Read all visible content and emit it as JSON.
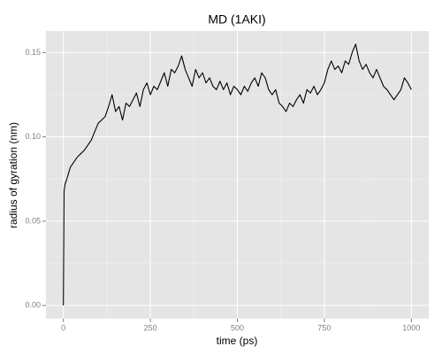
{
  "chart_data": {
    "type": "line",
    "title": "MD (1AKI)",
    "x_label": "time (ps)",
    "y_label": "radius of gyration (nm)",
    "x": [
      0,
      2,
      5,
      10,
      20,
      30,
      40,
      50,
      60,
      70,
      80,
      90,
      100,
      110,
      120,
      130,
      140,
      150,
      160,
      170,
      180,
      190,
      200,
      210,
      220,
      230,
      240,
      250,
      260,
      270,
      280,
      290,
      300,
      310,
      320,
      330,
      340,
      350,
      360,
      370,
      380,
      390,
      400,
      410,
      420,
      430,
      440,
      450,
      460,
      470,
      480,
      490,
      500,
      510,
      520,
      530,
      540,
      550,
      560,
      570,
      580,
      590,
      600,
      610,
      620,
      630,
      640,
      650,
      660,
      670,
      680,
      690,
      700,
      710,
      720,
      730,
      740,
      750,
      760,
      770,
      780,
      790,
      800,
      810,
      820,
      830,
      840,
      850,
      860,
      870,
      880,
      890,
      900,
      910,
      920,
      930,
      940,
      950,
      960,
      970,
      980,
      990,
      1000
    ],
    "values": [
      0.0,
      0.068,
      0.072,
      0.075,
      0.082,
      0.085,
      0.088,
      0.09,
      0.092,
      0.095,
      0.098,
      0.103,
      0.108,
      0.11,
      0.112,
      0.118,
      0.125,
      0.115,
      0.118,
      0.11,
      0.12,
      0.118,
      0.122,
      0.126,
      0.118,
      0.128,
      0.132,
      0.125,
      0.13,
      0.128,
      0.133,
      0.138,
      0.13,
      0.14,
      0.138,
      0.142,
      0.148,
      0.14,
      0.135,
      0.13,
      0.14,
      0.135,
      0.138,
      0.132,
      0.135,
      0.13,
      0.128,
      0.133,
      0.128,
      0.132,
      0.125,
      0.13,
      0.128,
      0.125,
      0.13,
      0.127,
      0.132,
      0.135,
      0.13,
      0.138,
      0.135,
      0.128,
      0.125,
      0.128,
      0.12,
      0.118,
      0.115,
      0.12,
      0.118,
      0.122,
      0.125,
      0.12,
      0.128,
      0.126,
      0.13,
      0.125,
      0.128,
      0.132,
      0.14,
      0.145,
      0.14,
      0.142,
      0.138,
      0.145,
      0.143,
      0.15,
      0.155,
      0.145,
      0.14,
      0.143,
      0.138,
      0.135,
      0.14,
      0.135,
      0.13,
      0.128,
      0.125,
      0.122,
      0.125,
      0.128,
      0.135,
      0.132,
      0.128
    ],
    "color": "#000000",
    "xlim": [
      -50,
      1050
    ],
    "ylim": [
      -0.0078,
      0.1628
    ],
    "xticks": [
      0,
      250,
      500,
      750,
      1000
    ],
    "yticks": [
      {
        "value": 0,
        "label": "0.00"
      },
      0.05,
      {
        "value": 0.1,
        "label": "0.10"
      },
      0.15
    ],
    "grid": true
  }
}
